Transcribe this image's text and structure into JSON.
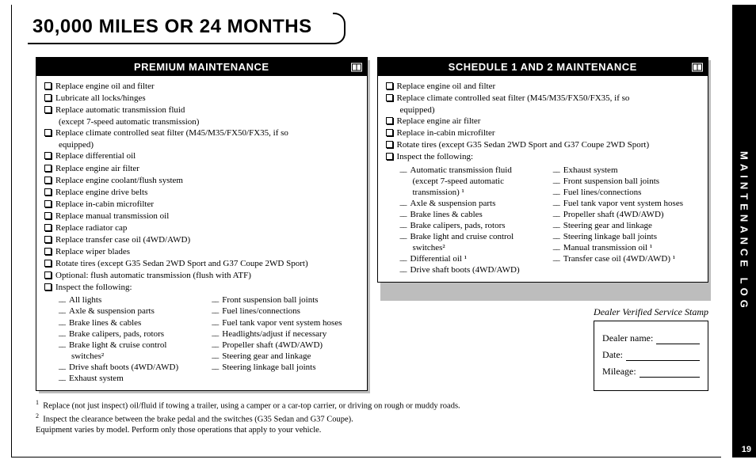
{
  "page": {
    "title": "30,000 MILES OR 24 MONTHS",
    "side_tab": "MAINTENANCE LOG",
    "page_number": "19",
    "colors": {
      "header_bg": "#000000",
      "header_fg": "#ffffff",
      "shadow": "#bdbdbd"
    }
  },
  "panels": {
    "left": {
      "header": "PREMIUM MAINTENANCE",
      "items": [
        "Replace engine oil and filter",
        "Lubricate all locks/hinges",
        "Replace automatic transmission fluid",
        "(except 7-speed automatic transmission)",
        "Replace climate controlled seat filter (M45/M35/FX50/FX35, if so",
        "equipped)",
        "Replace differential oil",
        "Replace engine air filter",
        "Replace engine coolant/flush system",
        "Replace engine drive belts",
        "Replace in-cabin microfilter",
        "Replace manual transmission oil",
        "Replace radiator cap",
        "Replace transfer case oil (4WD/AWD)",
        "Replace wiper blades",
        "Rotate tires (except G35 Sedan 2WD Sport and G37 Coupe 2WD Sport)",
        "Optional: flush automatic transmission (flush with ATF)",
        "Inspect the following:"
      ],
      "inspect_left": [
        "All lights",
        "Axle & suspension parts",
        "Brake lines & cables",
        "Brake calipers, pads, rotors",
        "Brake light & cruise control",
        "switches²",
        "Drive shaft boots (4WD/AWD)",
        "Exhaust system"
      ],
      "inspect_right": [
        "Front suspension ball joints",
        "Fuel lines/connections",
        "Fuel tank vapor vent system hoses",
        "Headlights/adjust if necessary",
        "Propeller shaft (4WD/AWD)",
        "Steering gear and linkage",
        "Steering linkage ball joints"
      ]
    },
    "right": {
      "header": "SCHEDULE 1 AND 2 MAINTENANCE",
      "items": [
        "Replace engine oil and filter",
        "Replace climate controlled seat filter (M45/M35/FX50/FX35, if so",
        "equipped)",
        "Replace engine air filter",
        "Replace in-cabin microfilter",
        "Rotate tires (except G35 Sedan 2WD Sport and G37 Coupe 2WD Sport)",
        "Inspect the following:"
      ],
      "inspect_left": [
        "Automatic transmission fluid",
        "(except 7-speed automatic",
        "transmission) ¹",
        "Axle & suspension parts",
        "Brake lines & cables",
        "Brake calipers, pads, rotors",
        "Brake light and cruise control",
        "switches²",
        "Differential oil ¹",
        "Drive shaft boots (4WD/AWD)"
      ],
      "inspect_right": [
        "Exhaust system",
        "Front suspension ball joints",
        "Fuel lines/connections",
        "Fuel tank vapor vent system hoses",
        "Propeller shaft (4WD/AWD)",
        "Steering gear and linkage",
        "Steering linkage ball joints",
        "Manual transmission oil ¹",
        "Transfer case oil (4WD/AWD) ¹"
      ]
    }
  },
  "stamp": {
    "title": "Dealer Verified Service Stamp",
    "dealer_label": "Dealer name:",
    "date_label": "Date:",
    "mileage_label": "Mileage:"
  },
  "footnotes": {
    "f1": "Replace (not just inspect) oil/fluid if towing a trailer, using a camper or a car-top carrier, or driving on rough or muddy roads.",
    "f2": "Inspect the clearance between the brake pedal and the switches (G35 Sedan and G37 Coupe).",
    "f3": "Equipment varies by model. Perform only those operations that apply to your vehicle."
  },
  "continuation_lines_left": [
    3,
    5
  ],
  "continuation_lines_right": [
    2
  ],
  "dash_continuation_left_left": [
    5
  ],
  "dash_continuation_right_left": [
    1,
    2,
    7
  ]
}
